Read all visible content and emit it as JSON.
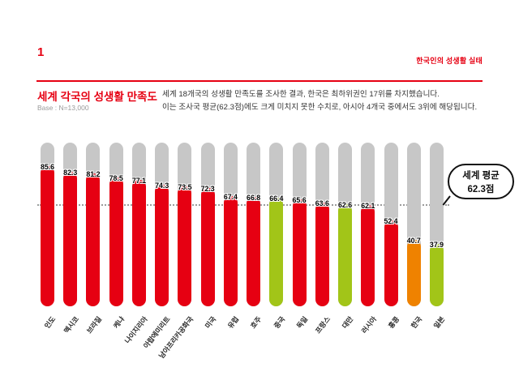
{
  "header": {
    "page_number": "1",
    "report_title": "한국인의 성생활 실태"
  },
  "title_block": {
    "title": "세계 각국의 성생활 만족도",
    "base": "Base : N=13,000"
  },
  "description": {
    "line1": "세계 18개국의 성생활 만족도를 조사한 결과, 한국은 최하위권인 17위를 차지했습니다.",
    "line2": "이는 조사국 평균(62.3점)에도 크게 미치지 못한 수치로, 아시아 4개국 중에서도 3위에 해당됩니다."
  },
  "callout": {
    "line1": "세계 평균",
    "line2": "62.3점"
  },
  "colors": {
    "red": "#e60012",
    "green": "#a2c518",
    "orange": "#ef8200",
    "track": "#c7c7c7",
    "accent": "#e60012",
    "dotted_line": "#9b9b9b"
  },
  "chart_data": {
    "type": "bar",
    "title": "세계 각국의 성생활 만족도",
    "subtitle": "Base : N=13,000",
    "categories": [
      "인도",
      "멕시코",
      "브라질",
      "케냐",
      "나이지리아",
      "아랍에미리트",
      "남아프리카공화국",
      "미국",
      "유럽",
      "호주",
      "중국",
      "독일",
      "프랑스",
      "대만",
      "러시아",
      "홍콩",
      "한국",
      "일본"
    ],
    "values": [
      85.6,
      82.3,
      81.2,
      78.5,
      77.1,
      74.3,
      73.5,
      72.3,
      67.4,
      66.8,
      66.4,
      65.6,
      63.6,
      62.6,
      62.1,
      52.4,
      40.7,
      37.9
    ],
    "bar_colors": [
      "red",
      "red",
      "red",
      "red",
      "red",
      "red",
      "red",
      "red",
      "red",
      "red",
      "green",
      "red",
      "red",
      "green",
      "red",
      "red",
      "orange",
      "green"
    ],
    "average": 62.3,
    "average_label": "세계 평균 62.3점",
    "xlabel": "",
    "ylabel": "",
    "ylim": [
      0,
      100
    ],
    "grid": "average-dotted-line-only",
    "legend_position": "none"
  }
}
